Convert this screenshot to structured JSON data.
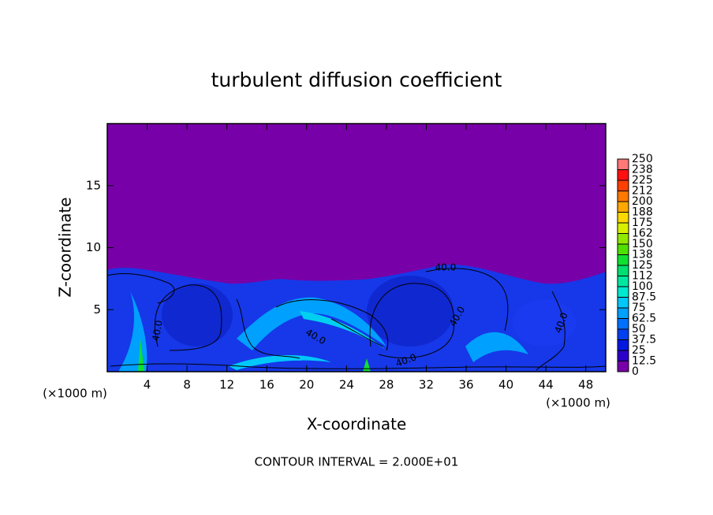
{
  "chart_data": {
    "type": "contour",
    "title": "turbulent diffusion coefficient",
    "x_label": "X-coordinate",
    "y_label": "Z-coordinate",
    "x_unit_label": "(×1000 m)",
    "y_unit_label": "(×1000 m)",
    "footer": "CONTOUR INTERVAL = 2.000E+01",
    "contour_labels": [
      "40.0",
      "40.0",
      "40.0",
      "40.0",
      "40.0",
      "40.0"
    ],
    "xlim": [
      0,
      50
    ],
    "ylim": [
      0,
      20
    ],
    "xticks": [
      4,
      8,
      12,
      16,
      20,
      24,
      28,
      32,
      36,
      40,
      44,
      48
    ],
    "yticks": [
      5,
      10,
      15
    ],
    "colorbar_ticks": [
      0,
      12.5,
      25,
      37.5,
      50,
      62.5,
      75,
      87.5,
      100,
      {
        "value": 112.5,
        "label": "112"
      },
      125,
      {
        "value": 137.5,
        "label": "138"
      },
      150,
      {
        "value": 162.5,
        "label": "162"
      },
      175,
      {
        "value": 187.5,
        "label": "188"
      },
      200,
      {
        "value": 212.5,
        "label": "212"
      },
      225,
      {
        "value": 237.5,
        "label": "238"
      },
      250
    ],
    "colorbar_colors": [
      "#7800a8",
      "#2c00c8",
      "#0018e0",
      "#0040f0",
      "#0070ff",
      "#00a0ff",
      "#00c8f8",
      "#00e8d0",
      "#00e8a0",
      "#00e070",
      "#10e030",
      "#50e000",
      "#90e800",
      "#d8f000",
      "#ffd800",
      "#ffa800",
      "#ff7800",
      "#ff4000",
      "#ff1010",
      "#ff7878"
    ]
  }
}
